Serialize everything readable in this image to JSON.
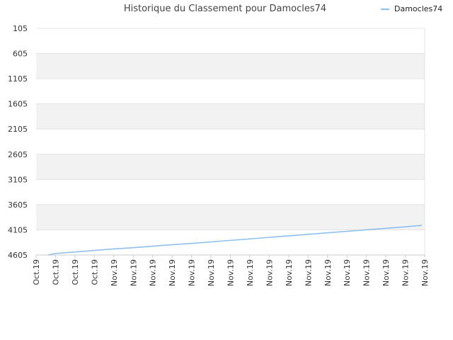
{
  "chart_data": {
    "type": "line",
    "title": "Historique du Classement pour Damocles74",
    "xlabel": "",
    "ylabel": "",
    "y_inverted": true,
    "ylim": [
      105,
      4605
    ],
    "yticks": [
      "105",
      "605",
      "1105",
      "1605",
      "2105",
      "2605",
      "3105",
      "3605",
      "4105",
      "4605"
    ],
    "categories": [
      "Oct.19",
      "Oct.19",
      "Oct.19",
      "Oct.19",
      "Nov.19",
      "Nov.19",
      "Nov.19",
      "Nov.19",
      "Nov.19",
      "Nov.19",
      "Nov.19",
      "Nov.19",
      "Nov.19",
      "Nov.19",
      "Nov.19",
      "Nov.19",
      "Nov.19",
      "Nov.19",
      "Nov.19",
      "Nov.19",
      "Nov.19"
    ],
    "grid": true,
    "legend_position": "top-right",
    "series": [
      {
        "name": "Damocles74",
        "color": "#8ec0ee",
        "values": [
          4605,
          4575,
          4545,
          4515,
          4485,
          4460,
          4430,
          4400,
          4375,
          4345,
          4315,
          4285,
          4255,
          4225,
          4195,
          4165,
          4135,
          4105,
          4075,
          4045,
          4015
        ]
      }
    ],
    "band_colors": [
      "#ffffff",
      "#f2f2f2"
    ]
  }
}
